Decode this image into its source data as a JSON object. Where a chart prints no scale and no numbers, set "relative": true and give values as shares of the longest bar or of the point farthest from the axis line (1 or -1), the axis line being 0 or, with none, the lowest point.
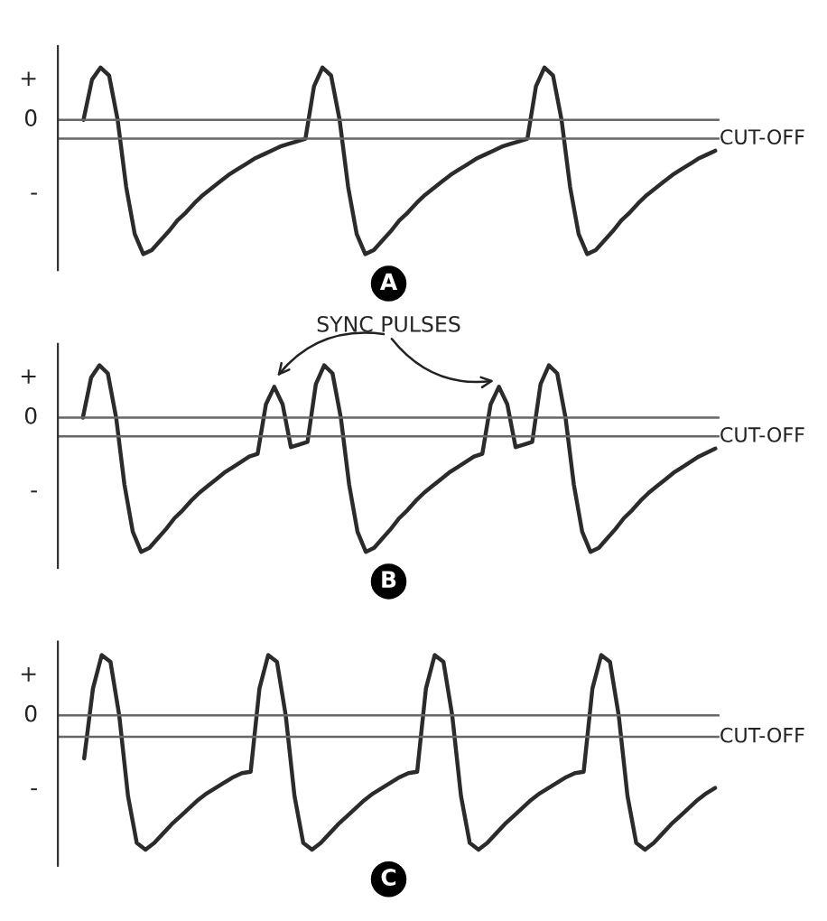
{
  "chart_data": [
    {
      "type": "line",
      "title": "A",
      "relative": true,
      "annotations": [
        "+",
        "-"
      ],
      "categories": [
        null,
        null,
        null,
        null,
        null,
        null,
        null,
        null,
        null,
        null,
        null,
        null,
        null,
        null,
        null,
        null,
        null,
        null,
        null,
        null,
        null,
        null,
        null,
        null,
        null,
        null,
        null,
        null,
        null,
        null,
        null,
        null,
        null,
        null,
        null,
        null,
        null,
        null,
        null,
        null,
        null,
        null,
        null,
        null,
        null,
        null,
        null,
        null,
        null,
        null,
        null,
        null,
        null,
        null,
        null,
        null,
        null,
        null,
        null,
        null,
        null,
        null,
        null,
        null,
        null,
        null,
        null,
        null,
        null,
        null,
        null,
        null,
        null,
        null,
        null
      ],
      "series": [
        {
          "color": "#2b2b2b",
          "values": [
            0.0,
            0.3,
            0.39,
            0.33,
            0.0,
            -0.5,
            -0.85,
            -1.0,
            -0.97,
            -0.9,
            -0.83,
            -0.75,
            -0.69,
            -0.62,
            -0.56,
            -0.51,
            -0.46,
            -0.41,
            -0.37,
            -0.33,
            -0.29,
            -0.26,
            -0.23,
            -0.2,
            -0.18,
            -0.16,
            -0.14,
            0.25,
            0.39,
            0.33,
            0.0,
            -0.5,
            -0.85,
            -1.0,
            -0.97,
            -0.9,
            -0.83,
            -0.75,
            -0.69,
            -0.62,
            -0.56,
            -0.51,
            -0.46,
            -0.41,
            -0.37,
            -0.33,
            -0.29,
            -0.26,
            -0.23,
            -0.2,
            -0.18,
            -0.16,
            -0.14,
            0.25,
            0.39,
            0.33,
            0.0,
            -0.5,
            -0.85,
            -1.0,
            -0.97,
            -0.9,
            -0.83,
            -0.75,
            -0.69,
            -0.62,
            -0.56,
            -0.51,
            -0.46,
            -0.41,
            -0.37,
            -0.33,
            -0.29,
            -0.26,
            -0.23
          ]
        }
      ],
      "ref_lines": [
        {
          "axis": "y",
          "value": 0,
          "label": "0",
          "color": "#666666"
        },
        {
          "axis": "y",
          "value": -0.14,
          "label": "CUT-OFF",
          "color": "#666666"
        }
      ]
    },
    {
      "type": "line",
      "title": "B",
      "relative": true,
      "categories": [
        null,
        null,
        null,
        null,
        null,
        null,
        null,
        null,
        null,
        null,
        null,
        null,
        null,
        null,
        null,
        null,
        null,
        null,
        null,
        null,
        null,
        null,
        null,
        null,
        null,
        null,
        null,
        null,
        null,
        null,
        null,
        null,
        null,
        null,
        null,
        null,
        null,
        null,
        null,
        null,
        null,
        null,
        null,
        null,
        null,
        null,
        null,
        null,
        null,
        null,
        null,
        null,
        null,
        null,
        null,
        null,
        null,
        null,
        null,
        null,
        null,
        null,
        null,
        null,
        null,
        null,
        null,
        null,
        null,
        null,
        null,
        null,
        null,
        null,
        null,
        null,
        null
      ],
      "series": [
        {
          "color": "#2b2b2b",
          "values": [
            0.0,
            0.3,
            0.39,
            0.33,
            0.0,
            -0.5,
            -0.85,
            -1.0,
            -0.97,
            -0.9,
            -0.83,
            -0.75,
            -0.69,
            -0.62,
            -0.56,
            -0.51,
            -0.46,
            -0.41,
            -0.37,
            -0.33,
            -0.29,
            -0.27,
            0.1,
            0.23,
            0.1,
            -0.22,
            -0.2,
            -0.18,
            0.25,
            0.39,
            0.33,
            0.0,
            -0.5,
            -0.85,
            -1.0,
            -0.97,
            -0.9,
            -0.83,
            -0.75,
            -0.69,
            -0.62,
            -0.56,
            -0.51,
            -0.46,
            -0.41,
            -0.37,
            -0.33,
            -0.29,
            -0.27,
            0.1,
            0.23,
            0.1,
            -0.22,
            -0.2,
            -0.18,
            0.25,
            0.39,
            0.33,
            0.0,
            -0.5,
            -0.85,
            -1.0,
            -0.97,
            -0.9,
            -0.83,
            -0.75,
            -0.69,
            -0.62,
            -0.56,
            -0.51,
            -0.46,
            -0.41,
            -0.37,
            -0.33,
            -0.29,
            -0.26,
            -0.23
          ]
        }
      ],
      "ref_lines": [
        {
          "axis": "y",
          "value": 0,
          "label": "0",
          "color": "#666666"
        },
        {
          "axis": "y",
          "value": -0.14,
          "label": "CUT-OFF",
          "color": "#666666"
        }
      ],
      "annotations": [
        "SYNC PULSES",
        "+",
        "-"
      ]
    },
    {
      "type": "line",
      "title": "C",
      "relative": true,
      "annotations": [
        "+",
        "-"
      ],
      "categories": [
        null,
        null,
        null,
        null,
        null,
        null,
        null,
        null,
        null,
        null,
        null,
        null,
        null,
        null,
        null,
        null,
        null,
        null,
        null,
        null,
        null,
        null,
        null,
        null,
        null,
        null,
        null,
        null,
        null,
        null,
        null,
        null,
        null,
        null,
        null,
        null,
        null,
        null,
        null,
        null,
        null,
        null,
        null,
        null,
        null,
        null,
        null,
        null,
        null,
        null,
        null,
        null,
        null,
        null,
        null,
        null,
        null,
        null,
        null,
        null,
        null,
        null,
        null,
        null,
        null,
        null,
        null,
        null,
        null,
        null,
        null,
        null,
        null
      ],
      "series": [
        {
          "color": "#2b2b2b",
          "values": [
            -0.32,
            0.2,
            0.45,
            0.4,
            0.0,
            -0.6,
            -0.95,
            -1.0,
            -0.95,
            -0.88,
            -0.81,
            -0.75,
            -0.69,
            -0.63,
            -0.58,
            -0.54,
            -0.5,
            -0.46,
            -0.43,
            -0.42,
            0.2,
            0.45,
            0.4,
            0.0,
            -0.6,
            -0.95,
            -1.0,
            -0.95,
            -0.88,
            -0.81,
            -0.75,
            -0.69,
            -0.63,
            -0.58,
            -0.54,
            -0.5,
            -0.46,
            -0.43,
            -0.42,
            0.2,
            0.45,
            0.4,
            0.0,
            -0.6,
            -0.95,
            -1.0,
            -0.95,
            -0.88,
            -0.81,
            -0.75,
            -0.69,
            -0.63,
            -0.58,
            -0.54,
            -0.5,
            -0.46,
            -0.43,
            -0.42,
            0.2,
            0.45,
            0.4,
            0.0,
            -0.6,
            -0.95,
            -1.0,
            -0.95,
            -0.88,
            -0.81,
            -0.75,
            -0.69,
            -0.63,
            -0.58,
            -0.54
          ]
        }
      ],
      "ref_lines": [
        {
          "axis": "y",
          "value": 0,
          "label": "0",
          "color": "#666666"
        },
        {
          "axis": "y",
          "value": -0.16,
          "label": "CUT-OFF",
          "color": "#666666"
        }
      ]
    }
  ]
}
